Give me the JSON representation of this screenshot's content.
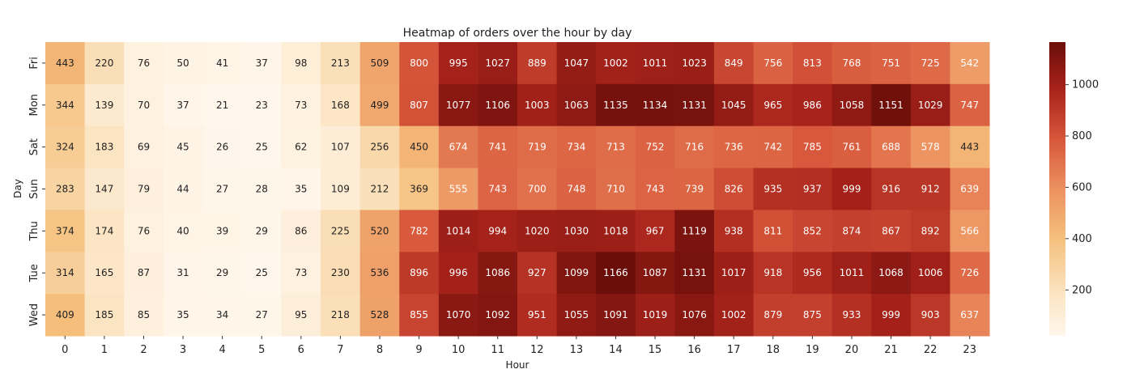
{
  "chart_data": {
    "type": "heatmap",
    "title": "Heatmap of orders over the hour by day",
    "xlabel": "Hour",
    "ylabel": "Day",
    "x": [
      "0",
      "1",
      "2",
      "3",
      "4",
      "5",
      "6",
      "7",
      "8",
      "9",
      "10",
      "11",
      "12",
      "13",
      "14",
      "15",
      "16",
      "17",
      "18",
      "19",
      "20",
      "21",
      "22",
      "23"
    ],
    "y": [
      "Fri",
      "Mon",
      "Sat",
      "Sun",
      "Thu",
      "Tue",
      "Wed"
    ],
    "values": [
      [
        443,
        220,
        76,
        50,
        41,
        37,
        98,
        213,
        509,
        800,
        995,
        1027,
        889,
        1047,
        1002,
        1011,
        1023,
        849,
        756,
        813,
        768,
        751,
        725,
        542
      ],
      [
        344,
        139,
        70,
        37,
        21,
        23,
        73,
        168,
        499,
        807,
        1077,
        1106,
        1003,
        1063,
        1135,
        1134,
        1131,
        1045,
        965,
        986,
        1058,
        1151,
        1029,
        747
      ],
      [
        324,
        183,
        69,
        45,
        26,
        25,
        62,
        107,
        256,
        450,
        674,
        741,
        719,
        734,
        713,
        752,
        716,
        736,
        742,
        785,
        761,
        688,
        578,
        443
      ],
      [
        283,
        147,
        79,
        44,
        27,
        28,
        35,
        109,
        212,
        369,
        555,
        743,
        700,
        748,
        710,
        743,
        739,
        826,
        935,
        937,
        999,
        916,
        912,
        639
      ],
      [
        374,
        174,
        76,
        40,
        39,
        29,
        86,
        225,
        520,
        782,
        1014,
        994,
        1020,
        1030,
        1018,
        967,
        1119,
        938,
        811,
        852,
        874,
        867,
        892,
        566
      ],
      [
        314,
        165,
        87,
        31,
        29,
        25,
        73,
        230,
        536,
        896,
        996,
        1086,
        927,
        1099,
        1166,
        1087,
        1131,
        1017,
        918,
        956,
        1011,
        1068,
        1006,
        726
      ],
      [
        409,
        185,
        85,
        35,
        34,
        27,
        95,
        218,
        528,
        855,
        1070,
        1092,
        951,
        1055,
        1091,
        1019,
        1076,
        1002,
        879,
        875,
        933,
        999,
        903,
        637
      ]
    ],
    "colorscale": "OrRd-like (light cream to dark red)",
    "colorbar": {
      "range": [
        21,
        1166
      ],
      "ticks": [
        200,
        400,
        600,
        800,
        1000
      ]
    },
    "annotations": "cell values shown",
    "grid": false
  }
}
